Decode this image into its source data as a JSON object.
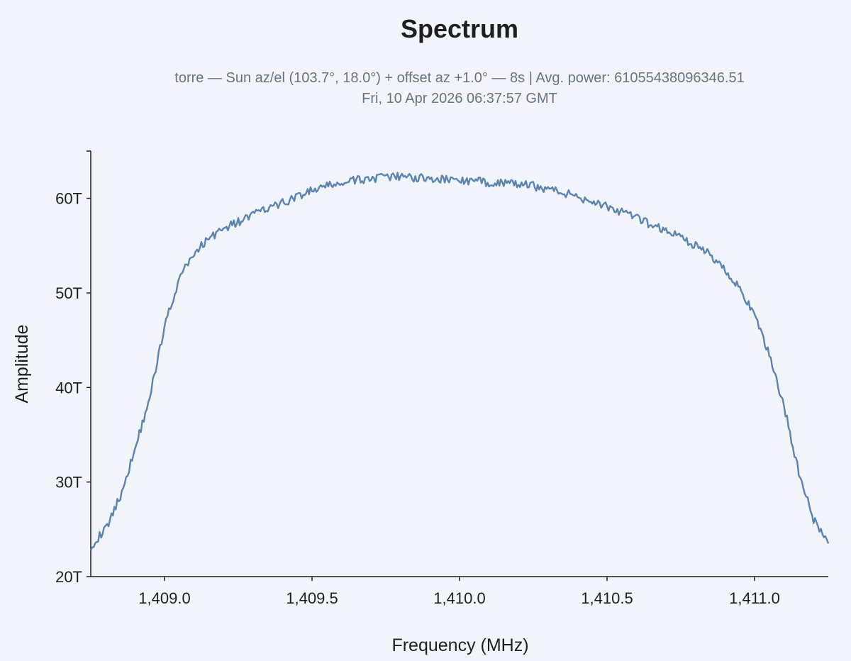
{
  "chart_data": {
    "type": "line",
    "title": "Spectrum",
    "subtitle_line1": "torre — Sun az/el (103.7°, 18.0°) + offset az +1.0° — 8s | Avg. power: 61055438096346.51",
    "subtitle_line2": "Fri, 10 Apr 2026 06:37:57 GMT",
    "xlabel": "Frequency (MHz)",
    "ylabel": "Amplitude",
    "xlim": [
      1408.75,
      1411.25
    ],
    "ylim": [
      20,
      65
    ],
    "x_ticks": [
      1409.0,
      1409.5,
      1410.0,
      1410.5,
      1411.0
    ],
    "x_tick_labels": [
      "1,409.0",
      "1,409.5",
      "1,410.0",
      "1,410.5",
      "1,411.0"
    ],
    "y_ticks": [
      20,
      30,
      40,
      50,
      60
    ],
    "y_tick_labels": [
      "20T",
      "30T",
      "40T",
      "50T",
      "60T"
    ],
    "y_unit_multiplier": 1000000000000.0,
    "grid": false,
    "line_color": "#5b84b1",
    "series": [
      {
        "x": [
          1408.75,
          1408.8,
          1408.85,
          1408.9,
          1408.95,
          1409.0,
          1409.05,
          1409.1,
          1409.15,
          1409.2,
          1409.25,
          1409.3,
          1409.35,
          1409.4,
          1409.45,
          1409.5,
          1409.55,
          1409.6,
          1409.65,
          1409.7,
          1409.75,
          1409.8,
          1409.85,
          1409.9,
          1409.95,
          1410.0,
          1410.05,
          1410.1,
          1410.15,
          1410.2,
          1410.25,
          1410.3,
          1410.35,
          1410.4,
          1410.45,
          1410.5,
          1410.55,
          1410.6,
          1410.65,
          1410.7,
          1410.75,
          1410.8,
          1410.85,
          1410.9,
          1410.95,
          1411.0,
          1411.05,
          1411.1,
          1411.15,
          1411.2,
          1411.25
        ],
        "values": [
          23.2,
          25.0,
          28.5,
          33.5,
          39.0,
          46.5,
          51.5,
          54.2,
          55.8,
          56.8,
          57.5,
          58.3,
          58.9,
          59.5,
          60.2,
          60.8,
          61.3,
          61.6,
          61.9,
          62.1,
          62.2,
          62.3,
          62.2,
          62.1,
          62.0,
          61.9,
          61.8,
          61.7,
          61.6,
          61.5,
          61.3,
          61.0,
          60.6,
          60.2,
          59.7,
          59.1,
          58.5,
          57.9,
          57.2,
          56.6,
          55.9,
          55.0,
          54.0,
          52.5,
          50.5,
          47.5,
          43.5,
          38.0,
          31.0,
          26.0,
          23.5
        ]
      }
    ]
  }
}
